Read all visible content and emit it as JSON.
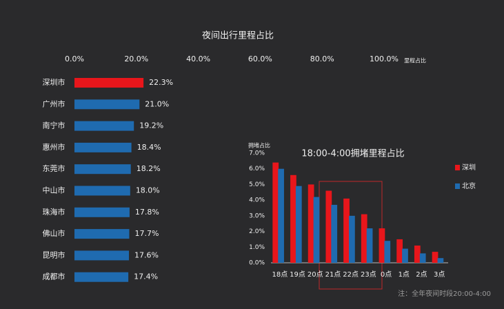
{
  "chart_data": [
    {
      "type": "bar",
      "orientation": "horizontal",
      "title": "夜间出行里程占比",
      "x_label": "里程占比",
      "categories": [
        "深圳市",
        "广州市",
        "南宁市",
        "惠州市",
        "东莞市",
        "中山市",
        "珠海市",
        "佛山市",
        "昆明市",
        "成都市"
      ],
      "values": [
        22.3,
        21.0,
        19.2,
        18.4,
        18.2,
        18.0,
        17.8,
        17.7,
        17.6,
        17.4
      ],
      "value_labels": [
        "22.3%",
        "21.0%",
        "19.2%",
        "18.4%",
        "18.2%",
        "18.0%",
        "17.8%",
        "17.7%",
        "17.6%",
        "17.4%"
      ],
      "colors": [
        "#e8161b",
        "#1f6bb0",
        "#1f6bb0",
        "#1f6bb0",
        "#1f6bb0",
        "#1f6bb0",
        "#1f6bb0",
        "#1f6bb0",
        "#1f6bb0",
        "#1f6bb0"
      ],
      "xlim": [
        0,
        100
      ],
      "xticks": [
        {
          "value": 0,
          "label": "0.0%"
        },
        {
          "value": 20,
          "label": "20.0%"
        },
        {
          "value": 40,
          "label": "40.0%"
        },
        {
          "value": 60,
          "label": "60.0%"
        },
        {
          "value": 80,
          "label": "80.0%"
        },
        {
          "value": 100,
          "label": "100.0%"
        }
      ]
    },
    {
      "type": "bar",
      "orientation": "vertical",
      "title": "18:00-4:00拥堵里程占比",
      "y_label": "拥堵占比",
      "categories": [
        "18点",
        "19点",
        "20点",
        "21点",
        "22点",
        "23点",
        "0点",
        "1点",
        "2点",
        "3点"
      ],
      "series": [
        {
          "name": "深圳",
          "color": "#e8161b",
          "values": [
            6.4,
            5.6,
            5.0,
            4.6,
            4.1,
            3.1,
            2.2,
            1.5,
            1.1,
            0.7
          ]
        },
        {
          "name": "北京",
          "color": "#1f6bb0",
          "values": [
            6.0,
            4.9,
            4.2,
            3.7,
            3.0,
            2.2,
            1.4,
            0.9,
            0.6,
            0.3
          ]
        }
      ],
      "ylim": [
        0,
        7
      ],
      "yticks": [
        {
          "value": 0,
          "label": "0.0%"
        },
        {
          "value": 1,
          "label": "1.0%"
        },
        {
          "value": 2,
          "label": "2.0%"
        },
        {
          "value": 3,
          "label": "3.0%"
        },
        {
          "value": 4,
          "label": "4.0%"
        },
        {
          "value": 5,
          "label": "5.0%"
        },
        {
          "value": 6,
          "label": "6.0%"
        },
        {
          "value": 7,
          "label": "7.0%"
        }
      ],
      "annotation": "注：全年夜间时段20:00-4:00"
    }
  ]
}
